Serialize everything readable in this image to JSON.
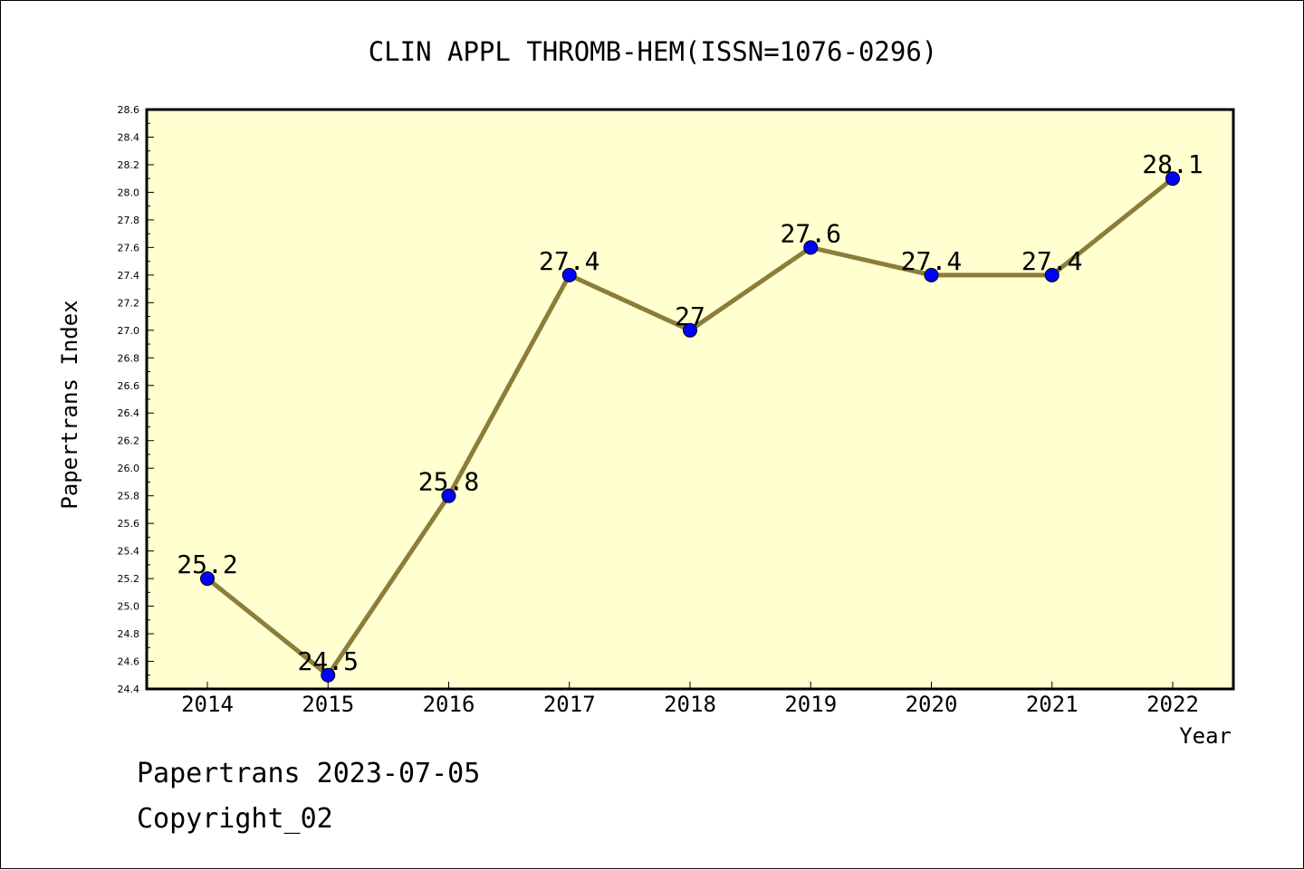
{
  "chart_data": {
    "type": "line",
    "title": "CLIN APPL THROMB-HEM(ISSN=1076-0296)",
    "xlabel": "Year",
    "ylabel": "Papertrans Index",
    "categories": [
      "2014",
      "2015",
      "2016",
      "2017",
      "2018",
      "2019",
      "2020",
      "2021",
      "2022"
    ],
    "values": [
      25.2,
      24.5,
      25.8,
      27.4,
      27.0,
      27.6,
      27.4,
      27.4,
      28.1
    ],
    "data_labels": [
      "25.2",
      "24.5",
      "25.8",
      "27.4",
      "27",
      "27.6",
      "27.4",
      "27.4",
      "28.1"
    ],
    "ylim": [
      24.4,
      28.6
    ],
    "y_ticks": [
      "24.4",
      "24.6",
      "24.8",
      "25.0",
      "25.2",
      "25.4",
      "25.6",
      "25.8",
      "26.0",
      "26.2",
      "26.4",
      "26.6",
      "26.8",
      "27.0",
      "27.2",
      "27.4",
      "27.6",
      "27.8",
      "28.0",
      "28.2",
      "28.4",
      "28.6"
    ],
    "grid": false,
    "colors": {
      "plot_background": "#ffffd0",
      "line": "#8b7d3a",
      "marker": "#0000ff"
    }
  },
  "footer": {
    "line1": "Papertrans 2023-07-05",
    "line2": "Copyright_02"
  }
}
